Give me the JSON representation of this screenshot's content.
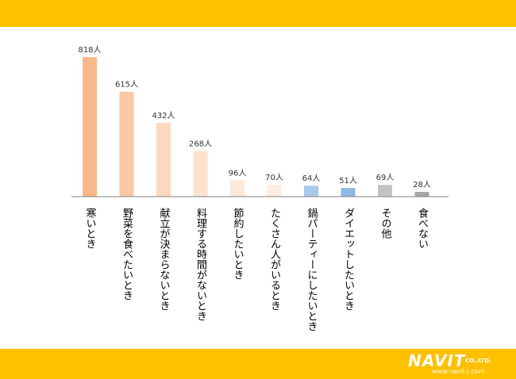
{
  "theme": {
    "band_color": "#FFC000"
  },
  "logo": {
    "brand": "NAVIT",
    "suffix": "CO.,LTD.",
    "url": "www.navit-j.com"
  },
  "chart_data": {
    "type": "bar",
    "title": "",
    "xlabel": "",
    "ylabel": "",
    "ylim": [
      0,
      818
    ],
    "grid": false,
    "legend": "none",
    "categories": [
      "寒いとき",
      "野菜を食べたいとき",
      "献立が決まらないとき",
      "料理する時間がないとき",
      "節約したいとき",
      "たくさん人がいるとき",
      "鍋パーティーにしたいとき",
      "ダイエットしたいとき",
      "その他",
      "食べない"
    ],
    "values": [
      818,
      615,
      432,
      268,
      96,
      70,
      64,
      51,
      69,
      28
    ],
    "value_labels": [
      "818人",
      "615人",
      "432人",
      "268人",
      "96人",
      "70人",
      "64人",
      "51人",
      "69人",
      "28人"
    ],
    "bar_colors": [
      "#F8B98A",
      "#FAC9A5",
      "#FCD9BE",
      "#FDE3CF",
      "#FDE9DA",
      "#FDEDE2",
      "#A8C8EC",
      "#8FB8E6",
      "#C4C4C4",
      "#A8A8A8"
    ]
  }
}
